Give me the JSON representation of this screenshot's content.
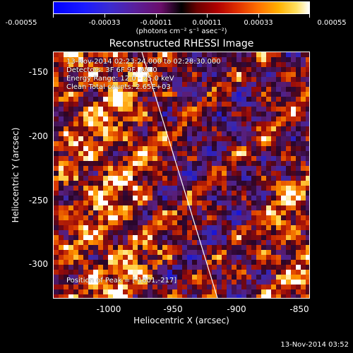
{
  "colorbar": {
    "ticks": [
      "-0.00055",
      "-0.00033",
      "-0.00011",
      "0.00011",
      "0.00033",
      "0.00055"
    ],
    "units": "(photons cm⁻² s⁻¹ asec⁻²)",
    "colors": [
      "#0000ff",
      "#000000",
      "#ff0000",
      "#ffffff"
    ]
  },
  "title": "Reconstructed RHESSI Image",
  "info": {
    "time_range": "13-Nov-2014 02:23:24.000 to 02:28:30.000",
    "detectors": "Detectors: 3F 6F 9F, Att:0",
    "energy": "Energy Range: 12.0 - 25.0 keV",
    "method": "Clean    Total counts: 2.65E+03",
    "peak": "Position of Peak = [-1001,-217]"
  },
  "axes": {
    "xlabel": "Heliocentric X (arcsec)",
    "ylabel": "Heliocentric Y (arcsec)",
    "xticks": [
      "-1000",
      "-950",
      "-900",
      "-850"
    ],
    "yticks": [
      "-150",
      "-200",
      "-250",
      "-300"
    ]
  },
  "footer": "13-Nov-2014 03:52"
}
